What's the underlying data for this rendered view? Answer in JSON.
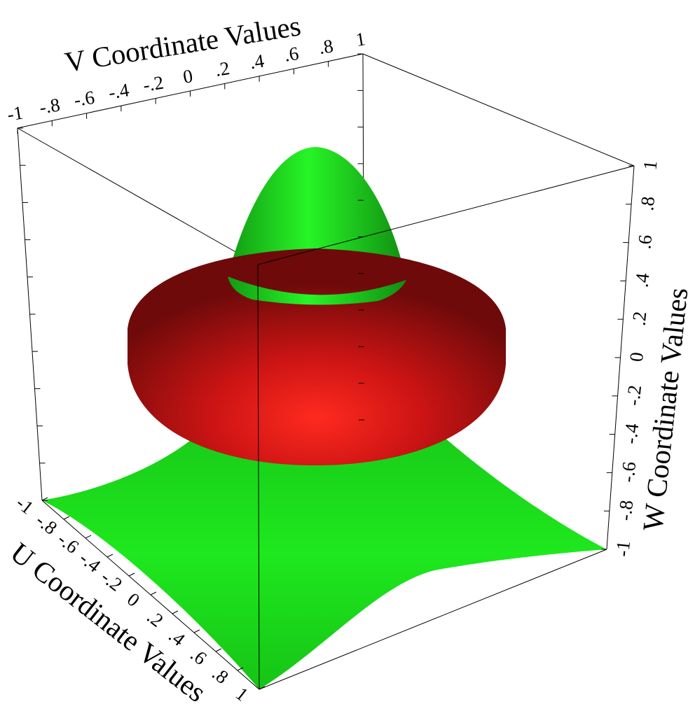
{
  "chart_data": {
    "type": "surface-3d",
    "title": "",
    "axes": {
      "u": {
        "title": "U Coordinate Values",
        "range": [
          -1,
          1
        ],
        "ticks": [
          -1,
          -0.8,
          -0.6,
          -0.4,
          -0.2,
          0,
          0.2,
          0.4,
          0.6,
          0.8,
          1
        ],
        "tick_labels": [
          "-1",
          "-.8",
          "-.6",
          "-.4",
          "-.2",
          "0",
          ".2",
          ".4",
          ".6",
          ".8",
          "1"
        ]
      },
      "v": {
        "title": "V Coordinate Values",
        "range": [
          -1,
          1
        ],
        "ticks": [
          -1,
          -0.8,
          -0.6,
          -0.4,
          -0.2,
          0,
          0.2,
          0.4,
          0.6,
          0.8,
          1
        ],
        "tick_labels": [
          "-1",
          "-.8",
          "-.6",
          "-.4",
          "-.2",
          "0",
          ".2",
          ".4",
          ".6",
          ".8",
          "1"
        ]
      },
      "w": {
        "title": "W Coordinate Values",
        "range": [
          -1,
          1
        ],
        "ticks": [
          -1,
          -0.8,
          -0.6,
          -0.4,
          -0.2,
          0,
          0.2,
          0.4,
          0.6,
          0.8,
          1
        ],
        "tick_labels": [
          "-1",
          "-.8",
          "-.6",
          "-.4",
          "-.2",
          "0",
          ".2",
          ".4",
          ".6",
          ".8",
          "1"
        ]
      }
    },
    "surfaces": [
      {
        "shape": "radial-peak-surface",
        "color": "#1fe21f",
        "peak_height": 1.0,
        "base_height": -0.85,
        "corner_height": -1.0
      },
      {
        "shape": "torus",
        "color": "#e01818",
        "center_height": 0.0,
        "outer_radius": 0.85,
        "inner_radius": 0.3,
        "half_thickness": 0.3
      }
    ],
    "grid": false,
    "legend": "none"
  }
}
